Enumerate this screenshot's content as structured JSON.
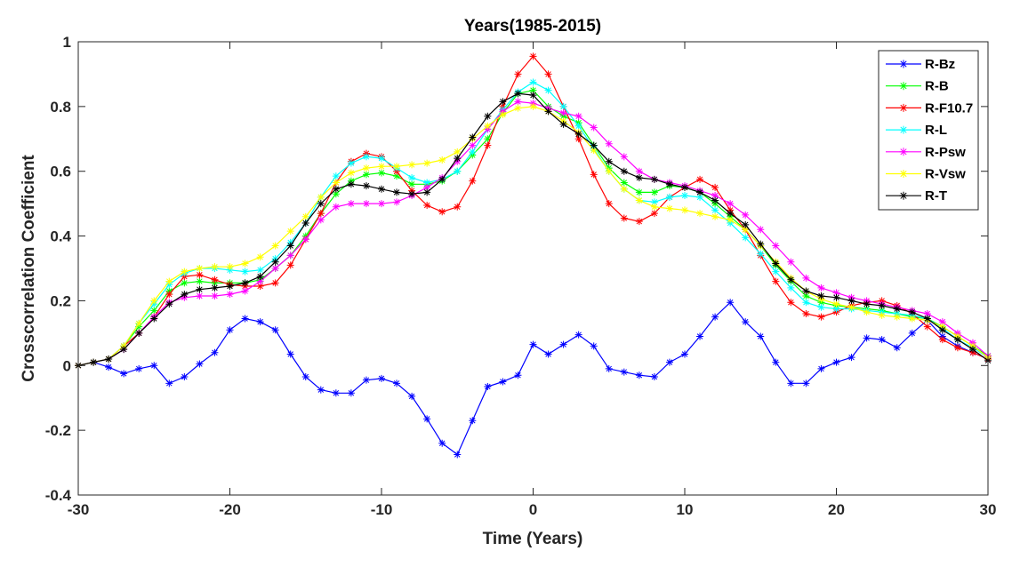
{
  "chart_data": {
    "type": "line",
    "title": "Years(1985-2015)",
    "xlabel": "Time (Years)",
    "ylabel": "Crosscorrelation Coefficient",
    "xlim": [
      -30,
      30
    ],
    "ylim": [
      -0.4,
      1
    ],
    "xticks": [
      -30,
      -20,
      -10,
      0,
      10,
      20,
      30
    ],
    "xtick_labels": [
      "-30",
      "-20",
      "-10",
      "0",
      "10",
      "20",
      "30"
    ],
    "yticks": [
      -0.4,
      -0.2,
      0,
      0.2,
      0.4,
      0.6,
      0.8,
      1
    ],
    "ytick_labels": [
      "-0.4",
      "-0.2",
      "0",
      "0.2",
      "0.4",
      "0.6",
      "0.8",
      "1"
    ],
    "grid": false,
    "legend_position": "top-right",
    "marker": "asterisk",
    "x": [
      -30,
      -29,
      -28,
      -27,
      -26,
      -25,
      -24,
      -23,
      -22,
      -21,
      -20,
      -19,
      -18,
      -17,
      -16,
      -15,
      -14,
      -13,
      -12,
      -11,
      -10,
      -9,
      -8,
      -7,
      -6,
      -5,
      -4,
      -3,
      -2,
      -1,
      0,
      1,
      2,
      3,
      4,
      5,
      6,
      7,
      8,
      9,
      10,
      11,
      12,
      13,
      14,
      15,
      16,
      17,
      18,
      19,
      20,
      21,
      22,
      23,
      24,
      25,
      26,
      27,
      28,
      29,
      30
    ],
    "series": [
      {
        "name": "R-Bz",
        "color": "#0000ff",
        "values": [
          0.0,
          0.01,
          -0.005,
          -0.025,
          -0.01,
          0.0,
          -0.055,
          -0.035,
          0.005,
          0.04,
          0.11,
          0.145,
          0.135,
          0.11,
          0.035,
          -0.035,
          -0.075,
          -0.085,
          -0.085,
          -0.045,
          -0.04,
          -0.055,
          -0.095,
          -0.165,
          -0.24,
          -0.275,
          -0.17,
          -0.065,
          -0.05,
          -0.03,
          0.065,
          0.035,
          0.065,
          0.095,
          0.06,
          -0.01,
          -0.02,
          -0.03,
          -0.035,
          0.01,
          0.035,
          0.09,
          0.15,
          0.195,
          0.135,
          0.09,
          0.01,
          -0.055,
          -0.055,
          -0.01,
          0.01,
          0.025,
          0.085,
          0.08,
          0.055,
          0.1,
          0.14,
          0.09,
          0.06,
          0.04,
          0.02
        ]
      },
      {
        "name": "R-B",
        "color": "#00ff00",
        "values": [
          0.0,
          0.01,
          0.02,
          0.06,
          0.12,
          0.17,
          0.23,
          0.255,
          0.26,
          0.255,
          0.255,
          0.255,
          0.265,
          0.3,
          0.34,
          0.4,
          0.47,
          0.53,
          0.57,
          0.59,
          0.595,
          0.585,
          0.56,
          0.56,
          0.57,
          0.6,
          0.65,
          0.7,
          0.78,
          0.84,
          0.85,
          0.8,
          0.77,
          0.75,
          0.68,
          0.61,
          0.565,
          0.535,
          0.535,
          0.555,
          0.55,
          0.535,
          0.5,
          0.46,
          0.42,
          0.37,
          0.31,
          0.26,
          0.215,
          0.195,
          0.185,
          0.18,
          0.175,
          0.17,
          0.16,
          0.15,
          0.145,
          0.12,
          0.09,
          0.06,
          0.03
        ]
      },
      {
        "name": "R-F10.7",
        "color": "#ff0000",
        "values": [
          0.0,
          0.01,
          0.02,
          0.06,
          0.1,
          0.15,
          0.22,
          0.275,
          0.28,
          0.265,
          0.25,
          0.245,
          0.245,
          0.255,
          0.31,
          0.39,
          0.47,
          0.565,
          0.63,
          0.655,
          0.645,
          0.6,
          0.54,
          0.495,
          0.475,
          0.49,
          0.57,
          0.68,
          0.8,
          0.9,
          0.955,
          0.9,
          0.8,
          0.7,
          0.59,
          0.5,
          0.455,
          0.445,
          0.47,
          0.52,
          0.55,
          0.575,
          0.55,
          0.48,
          0.42,
          0.34,
          0.26,
          0.195,
          0.16,
          0.15,
          0.165,
          0.185,
          0.195,
          0.2,
          0.185,
          0.16,
          0.12,
          0.08,
          0.055,
          0.04,
          0.02
        ]
      },
      {
        "name": "R-L",
        "color": "#00ffff",
        "values": [
          0.0,
          0.01,
          0.02,
          0.06,
          0.13,
          0.19,
          0.25,
          0.285,
          0.3,
          0.3,
          0.295,
          0.29,
          0.295,
          0.33,
          0.38,
          0.44,
          0.52,
          0.585,
          0.625,
          0.645,
          0.64,
          0.61,
          0.58,
          0.565,
          0.575,
          0.6,
          0.66,
          0.73,
          0.79,
          0.845,
          0.875,
          0.85,
          0.8,
          0.74,
          0.67,
          0.6,
          0.545,
          0.51,
          0.505,
          0.52,
          0.525,
          0.52,
          0.48,
          0.44,
          0.395,
          0.345,
          0.29,
          0.24,
          0.195,
          0.18,
          0.175,
          0.175,
          0.17,
          0.165,
          0.16,
          0.155,
          0.145,
          0.115,
          0.08,
          0.055,
          0.025
        ]
      },
      {
        "name": "R-Psw",
        "color": "#ff00ff",
        "values": [
          0.0,
          0.01,
          0.02,
          0.05,
          0.1,
          0.15,
          0.195,
          0.21,
          0.215,
          0.215,
          0.22,
          0.23,
          0.26,
          0.3,
          0.34,
          0.39,
          0.45,
          0.49,
          0.5,
          0.5,
          0.5,
          0.505,
          0.525,
          0.55,
          0.58,
          0.63,
          0.68,
          0.73,
          0.785,
          0.815,
          0.81,
          0.795,
          0.78,
          0.77,
          0.735,
          0.685,
          0.645,
          0.6,
          0.575,
          0.565,
          0.555,
          0.54,
          0.525,
          0.5,
          0.465,
          0.42,
          0.37,
          0.32,
          0.27,
          0.24,
          0.225,
          0.21,
          0.2,
          0.19,
          0.18,
          0.17,
          0.16,
          0.135,
          0.1,
          0.07,
          0.03
        ]
      },
      {
        "name": "R-Vsw",
        "color": "#ffff00",
        "values": [
          0.0,
          0.01,
          0.02,
          0.06,
          0.13,
          0.2,
          0.26,
          0.29,
          0.3,
          0.305,
          0.305,
          0.315,
          0.335,
          0.37,
          0.415,
          0.46,
          0.52,
          0.565,
          0.595,
          0.61,
          0.615,
          0.615,
          0.62,
          0.625,
          0.635,
          0.66,
          0.7,
          0.74,
          0.775,
          0.795,
          0.8,
          0.785,
          0.755,
          0.72,
          0.665,
          0.6,
          0.545,
          0.51,
          0.49,
          0.485,
          0.48,
          0.47,
          0.46,
          0.45,
          0.42,
          0.37,
          0.32,
          0.27,
          0.23,
          0.205,
          0.19,
          0.18,
          0.165,
          0.155,
          0.15,
          0.145,
          0.14,
          0.12,
          0.09,
          0.06,
          0.025
        ]
      },
      {
        "name": "R-T",
        "color": "#000000",
        "values": [
          0.0,
          0.01,
          0.02,
          0.05,
          0.1,
          0.145,
          0.19,
          0.22,
          0.235,
          0.24,
          0.245,
          0.255,
          0.275,
          0.32,
          0.37,
          0.44,
          0.5,
          0.545,
          0.56,
          0.555,
          0.545,
          0.535,
          0.53,
          0.535,
          0.575,
          0.64,
          0.705,
          0.77,
          0.815,
          0.84,
          0.835,
          0.785,
          0.745,
          0.715,
          0.68,
          0.63,
          0.6,
          0.58,
          0.575,
          0.56,
          0.55,
          0.535,
          0.51,
          0.47,
          0.435,
          0.375,
          0.315,
          0.265,
          0.23,
          0.215,
          0.21,
          0.2,
          0.19,
          0.185,
          0.175,
          0.165,
          0.145,
          0.11,
          0.08,
          0.05,
          0.015
        ]
      }
    ]
  }
}
